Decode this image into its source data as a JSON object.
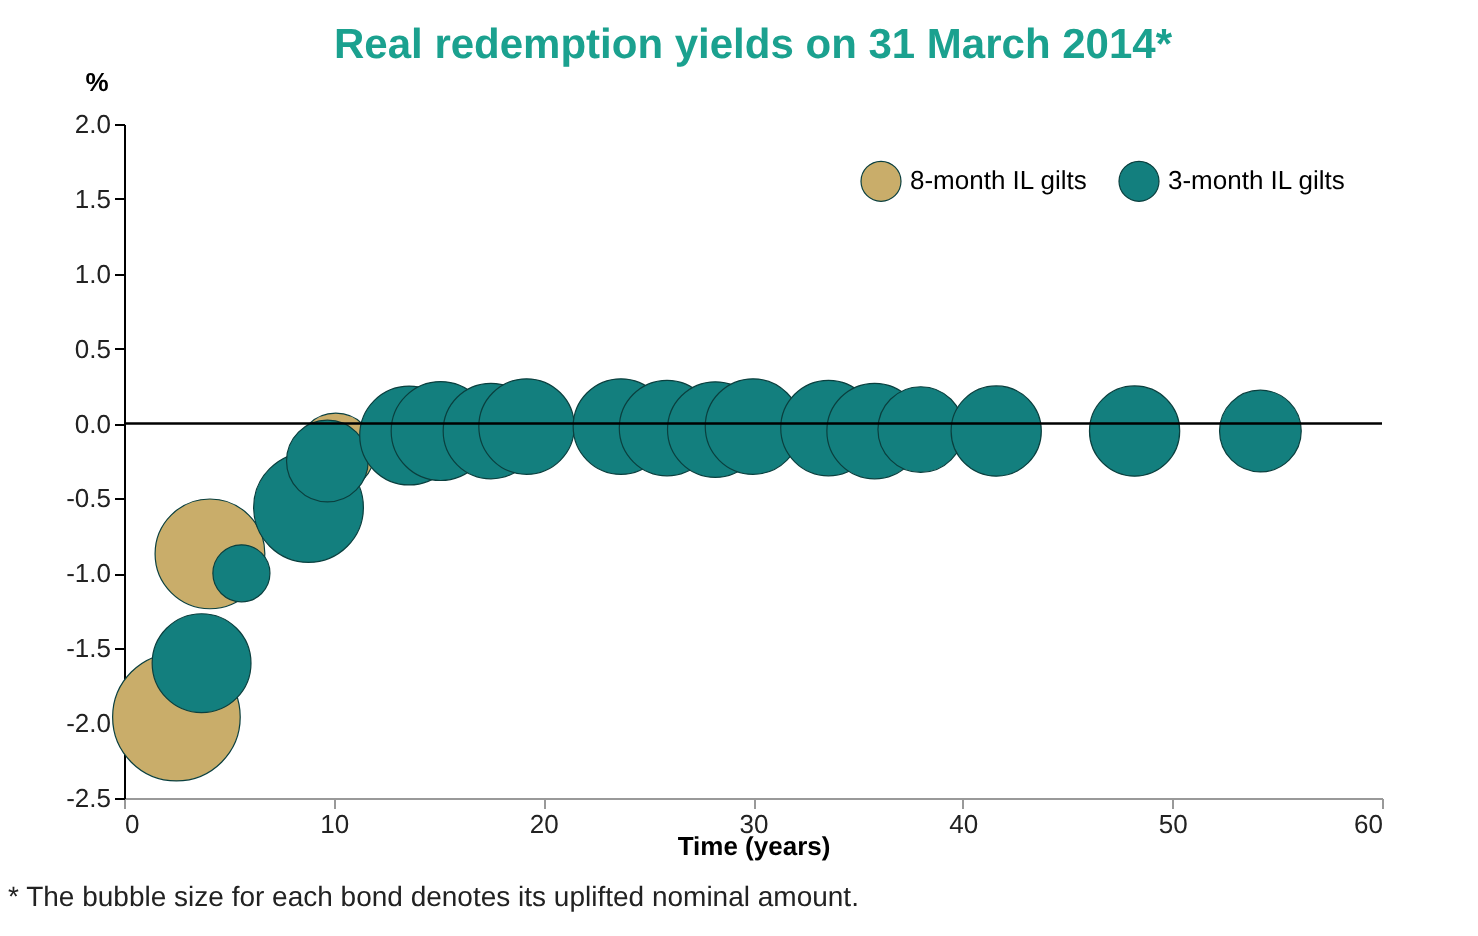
{
  "chart_data": {
    "type": "bubble",
    "title": "Real redemption yields on 31 March 2014*",
    "xlabel": "Time (years)",
    "ylabel": "%",
    "annotations": [
      "* The bubble size for each bond denotes its uplifted nominal amount."
    ],
    "xlim": [
      0,
      60
    ],
    "xticks": [
      0,
      10,
      20,
      30,
      40,
      50,
      60
    ],
    "ylim": [
      -2.5,
      2.0
    ],
    "yticks": [
      {
        "value": -2.5,
        "label": "-2.5"
      },
      {
        "value": -2,
        "label": "-2.0"
      },
      {
        "value": -1.5,
        "label": "-1.5"
      },
      {
        "value": -1,
        "label": "-1.0"
      },
      {
        "value": -0.5,
        "label": "-0.5"
      },
      {
        "value": 0,
        "label": "0.0"
      },
      {
        "value": 0.5,
        "label": "0.5"
      },
      {
        "value": 1,
        "label": "1.0"
      },
      {
        "value": 1.5,
        "label": "1.5"
      },
      {
        "value": 2,
        "label": "2.0"
      }
    ],
    "grid": false,
    "legend": "top right",
    "ref_lines": [
      {
        "axis": "y",
        "value": 0
      }
    ],
    "series": [
      {
        "name": "8-month IL gilts",
        "color": "#c9ad6a",
        "x": [
          2.5,
          4.1,
          10.1
        ],
        "values": [
          -1.96,
          -0.87,
          -0.19
        ],
        "sizes": [
          1,
          0.74,
          0.37
        ]
      },
      {
        "name": "3-month IL gilts",
        "color": "#137f7e",
        "x": [
          3.7,
          5.6,
          8.8,
          9.7,
          13.6,
          15.1,
          17.5,
          19.2,
          23.7,
          25.9,
          28.2,
          30.0,
          33.6,
          35.8,
          38.0,
          41.6,
          48.2,
          54.2
        ],
        "values": [
          -1.6,
          -1.0,
          -0.56,
          -0.25,
          -0.08,
          -0.05,
          -0.05,
          -0.02,
          -0.02,
          -0.03,
          -0.04,
          -0.02,
          -0.03,
          -0.05,
          -0.04,
          -0.05,
          -0.05,
          -0.05
        ],
        "sizes": [
          0.6,
          0.2,
          0.74,
          0.41,
          0.6,
          0.6,
          0.56,
          0.56,
          0.56,
          0.56,
          0.56,
          0.56,
          0.56,
          0.56,
          0.45,
          0.5,
          0.5,
          0.41
        ]
      }
    ]
  }
}
